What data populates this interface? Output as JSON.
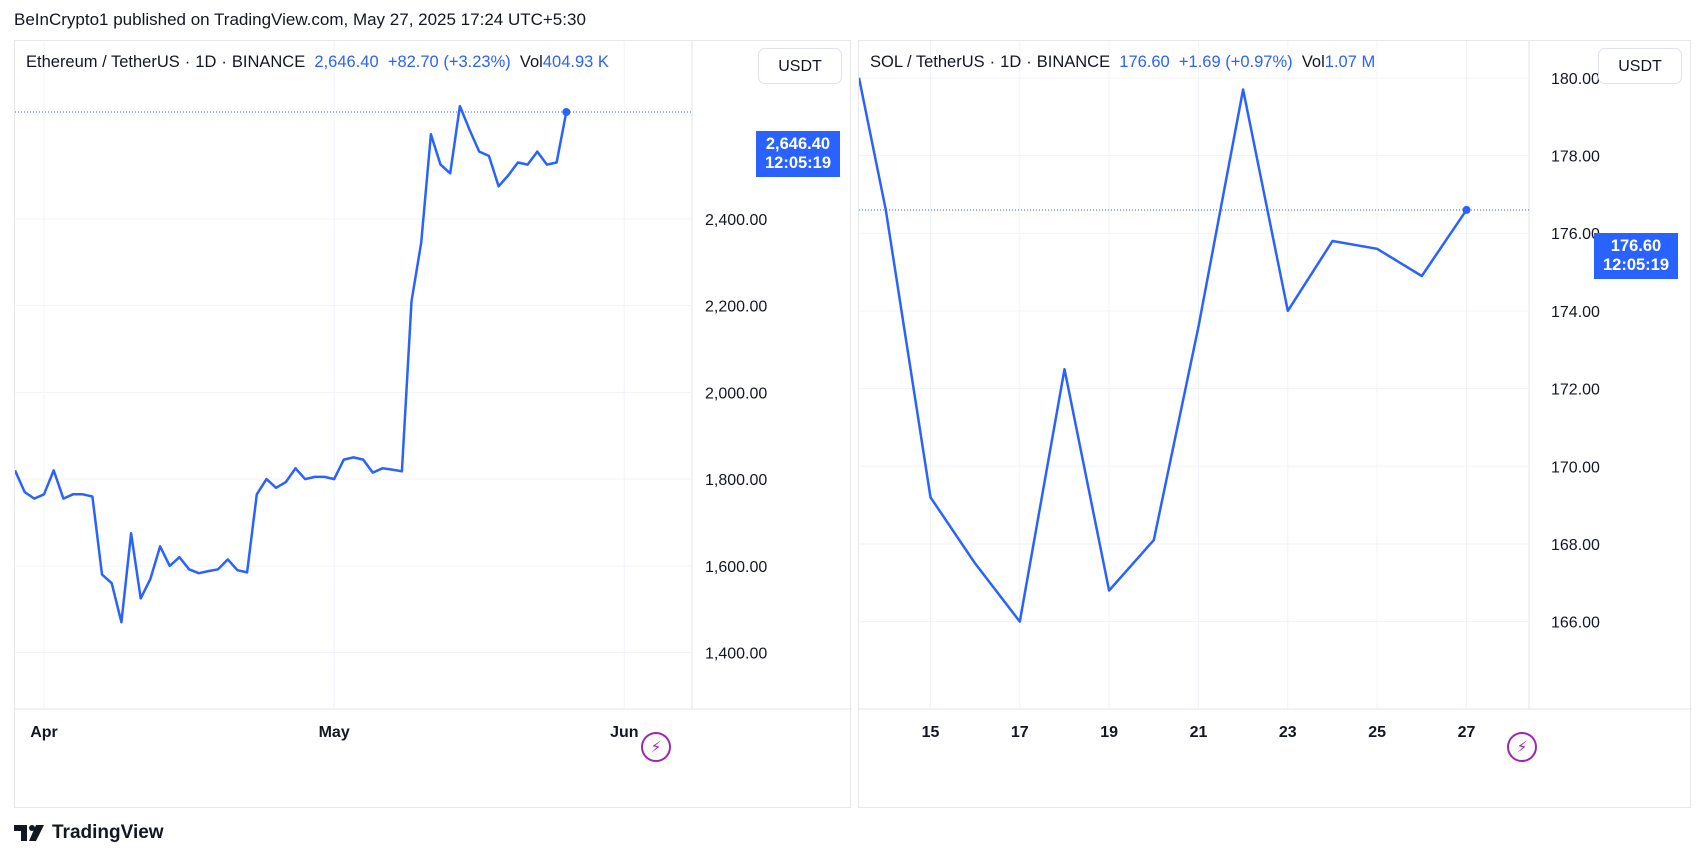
{
  "header": {
    "published_text": "BeInCrypto1 published on TradingView.com, May 27, 2025 17:24 UTC+5:30"
  },
  "footer": {
    "brand": "TradingView"
  },
  "colors": {
    "line": "#2962ff",
    "grid": "#f0f3fa",
    "border": "#e0e3eb",
    "bolt": "#9c27b0"
  },
  "panels": [
    {
      "symbol": "Ethereum / TetherUS",
      "interval": "1D",
      "exchange": "BINANCE",
      "last_price": "2,646.40",
      "change": "+82.70 (+3.23%)",
      "vol_label": "Vol",
      "vol_value": "404.93 K",
      "currency": "USDT",
      "price_tag": "2,646.40",
      "countdown": "12:05:19"
    },
    {
      "symbol": "SOL / TetherUS",
      "interval": "1D",
      "exchange": "BINANCE",
      "last_price": "176.60",
      "change": "+1.69 (+0.97%)",
      "vol_label": "Vol",
      "vol_value": "1.07 M",
      "currency": "USDT",
      "price_tag": "176.60",
      "countdown": "12:05:19"
    }
  ],
  "icons": [
    "lightning-bolt-icon",
    "tradingview-logo-icon"
  ],
  "chart_data": [
    {
      "type": "line",
      "title": "Ethereum / TetherUS · 1D · BINANCE",
      "x_ticks": [
        "Apr",
        "May",
        "Jun"
      ],
      "y_ticks": [
        "1,400.00",
        "1,600.00",
        "1,800.00",
        "2,000.00",
        "2,200.00",
        "2,400.00"
      ],
      "ylim": [
        1270,
        2810
      ],
      "x_range": [
        0,
        70
      ],
      "series": [
        {
          "x": [
            0,
            1,
            2,
            3,
            4,
            5,
            6,
            7,
            8,
            9,
            10,
            11,
            12,
            13,
            14,
            15,
            16,
            17,
            18,
            19,
            20,
            21,
            22,
            23,
            24,
            25,
            26,
            27,
            28,
            29,
            30,
            31,
            32,
            33,
            34,
            35,
            36,
            37,
            38,
            39,
            40,
            41,
            42,
            43,
            44,
            45,
            46,
            47,
            48,
            49,
            50,
            51,
            52,
            53,
            54,
            55,
            56
          ],
          "values": [
            1820,
            1770,
            1755,
            1765,
            1820,
            1755,
            1765,
            1765,
            1760,
            1580,
            1560,
            1470,
            1675,
            1525,
            1570,
            1645,
            1600,
            1620,
            1592,
            1583,
            1588,
            1592,
            1615,
            1590,
            1585,
            1765,
            1800,
            1780,
            1793,
            1825,
            1800,
            1805,
            1805,
            1800,
            1845,
            1850,
            1845,
            1815,
            1825,
            1822,
            1818,
            2210,
            2345,
            2595,
            2525,
            2505,
            2660,
            2605,
            2555,
            2545,
            2475,
            2500,
            2530,
            2525,
            2555,
            2525,
            2530
          ],
          "last_value": 2646.4
        }
      ],
      "last_price_line": 2646.4
    },
    {
      "type": "line",
      "title": "SOL / TetherUS · 1D · BINANCE",
      "x_ticks": [
        "15",
        "17",
        "19",
        "21",
        "23",
        "25",
        "27"
      ],
      "y_ticks": [
        "166.00",
        "168.00",
        "170.00",
        "172.00",
        "174.00",
        "176.00",
        "178.00",
        "180.00"
      ],
      "ylim": [
        163.75,
        180.95
      ],
      "x_range": [
        13.4,
        28.4
      ],
      "series": [
        {
          "x": [
            13.4,
            14,
            15,
            16,
            17,
            18,
            19,
            20,
            21,
            22,
            23,
            24,
            25,
            26,
            27
          ],
          "values": [
            180.0,
            176.6,
            169.2,
            167.5,
            166.0,
            172.5,
            166.8,
            168.1,
            173.6,
            179.7,
            174.0,
            175.8,
            175.6,
            174.9,
            176.6
          ]
        }
      ],
      "last_price_line": 176.6
    }
  ]
}
